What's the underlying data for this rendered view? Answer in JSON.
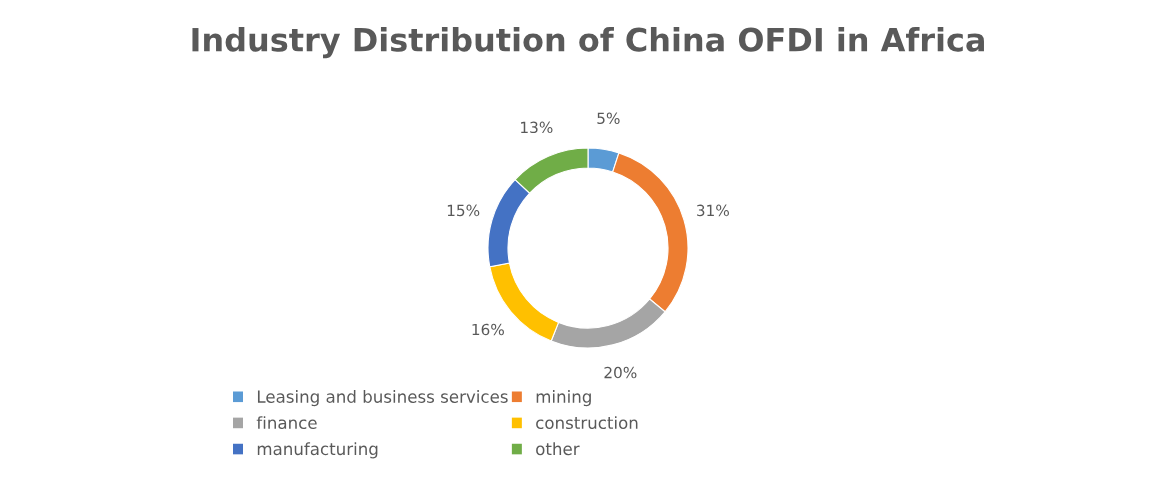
{
  "chart_data": {
    "type": "donut",
    "title": "Industry Distribution of China OFDI in Africa",
    "categories": [
      "Leasing and business services",
      "mining",
      "finance",
      "construction",
      "manufacturing",
      "other"
    ],
    "values": [
      5,
      31,
      20,
      16,
      15,
      13
    ],
    "colors": [
      "#5b9bd5",
      "#ed7d31",
      "#a5a5a5",
      "#ffc000",
      "#4472c4",
      "#70ad47"
    ],
    "value_labels": [
      "5%",
      "31%",
      "20%",
      "16%",
      "15%",
      "13%"
    ],
    "legend": "bottom"
  }
}
